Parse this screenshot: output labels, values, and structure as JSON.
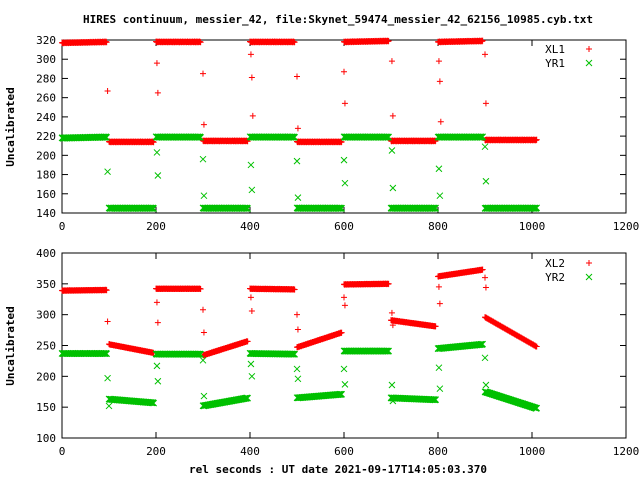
{
  "chart_data": [
    {
      "type": "scatter",
      "title": "HIRES continuum, messier_42, file:Skynet_59474_messier_42_62156_10985.cyb.txt",
      "xlabel": "",
      "ylabel": "Uncalibrated",
      "xlim": [
        0,
        1200
      ],
      "ylim": [
        140,
        320
      ],
      "xticks": [
        0,
        200,
        400,
        600,
        800,
        1000,
        1200
      ],
      "yticks": [
        140,
        160,
        180,
        200,
        220,
        240,
        260,
        280,
        300,
        320
      ],
      "legend": "top-right",
      "grid": false,
      "series": [
        {
          "name": "XL1",
          "marker": "plus",
          "color": "#ff0000",
          "segments": [
            {
              "x0": 0,
              "x1": 95,
              "y0": 317,
              "y1": 318
            },
            {
              "x0": 100,
              "x1": 195,
              "y0": 214,
              "y1": 214
            },
            {
              "x0": 200,
              "x1": 295,
              "y0": 318,
              "y1": 318
            },
            {
              "x0": 300,
              "x1": 395,
              "y0": 215,
              "y1": 215
            },
            {
              "x0": 400,
              "x1": 495,
              "y0": 318,
              "y1": 318
            },
            {
              "x0": 500,
              "x1": 595,
              "y0": 214,
              "y1": 214
            },
            {
              "x0": 600,
              "x1": 695,
              "y0": 318,
              "y1": 319
            },
            {
              "x0": 700,
              "x1": 795,
              "y0": 215,
              "y1": 215
            },
            {
              "x0": 800,
              "x1": 895,
              "y0": 318,
              "y1": 319
            },
            {
              "x0": 900,
              "x1": 1010,
              "y0": 216,
              "y1": 216
            }
          ],
          "transitions": [
            [
              97,
              267
            ],
            [
              202,
              296
            ],
            [
              204,
              265
            ],
            [
              300,
              285
            ],
            [
              302,
              232
            ],
            [
              402,
              305
            ],
            [
              404,
              281
            ],
            [
              406,
              241
            ],
            [
              500,
              282
            ],
            [
              502,
              228
            ],
            [
              600,
              287
            ],
            [
              602,
              254
            ],
            [
              702,
              298
            ],
            [
              704,
              241
            ],
            [
              802,
              298
            ],
            [
              804,
              277
            ],
            [
              806,
              235
            ],
            [
              900,
              305
            ],
            [
              902,
              254
            ]
          ]
        },
        {
          "name": "YR1",
          "marker": "cross",
          "color": "#00c000",
          "segments": [
            {
              "x0": 0,
              "x1": 95,
              "y0": 218,
              "y1": 219
            },
            {
              "x0": 100,
              "x1": 195,
              "y0": 145,
              "y1": 145
            },
            {
              "x0": 200,
              "x1": 295,
              "y0": 219,
              "y1": 219
            },
            {
              "x0": 300,
              "x1": 395,
              "y0": 145,
              "y1": 145
            },
            {
              "x0": 400,
              "x1": 495,
              "y0": 219,
              "y1": 219
            },
            {
              "x0": 500,
              "x1": 595,
              "y0": 145,
              "y1": 145
            },
            {
              "x0": 600,
              "x1": 695,
              "y0": 219,
              "y1": 219
            },
            {
              "x0": 700,
              "x1": 795,
              "y0": 145,
              "y1": 145
            },
            {
              "x0": 800,
              "x1": 895,
              "y0": 219,
              "y1": 219
            },
            {
              "x0": 900,
              "x1": 1010,
              "y0": 145,
              "y1": 145
            }
          ],
          "transitions": [
            [
              97,
              183
            ],
            [
              202,
              203
            ],
            [
              204,
              179
            ],
            [
              300,
              196
            ],
            [
              302,
              158
            ],
            [
              402,
              190
            ],
            [
              404,
              164
            ],
            [
              500,
              194
            ],
            [
              502,
              156
            ],
            [
              600,
              195
            ],
            [
              602,
              171
            ],
            [
              702,
              205
            ],
            [
              704,
              166
            ],
            [
              802,
              186
            ],
            [
              804,
              158
            ],
            [
              900,
              209
            ],
            [
              902,
              173
            ]
          ]
        }
      ]
    },
    {
      "type": "scatter",
      "title": "",
      "xlabel": "rel seconds : UT date 2021-09-17T14:05:03.370",
      "ylabel": "Uncalibrated",
      "xlim": [
        0,
        1200
      ],
      "ylim": [
        100,
        400
      ],
      "xticks": [
        0,
        200,
        400,
        600,
        800,
        1000,
        1200
      ],
      "yticks": [
        100,
        150,
        200,
        250,
        300,
        350,
        400
      ],
      "legend": "top-right",
      "grid": false,
      "series": [
        {
          "name": "XL2",
          "marker": "plus",
          "color": "#ff0000",
          "segments": [
            {
              "x0": 0,
              "x1": 95,
              "y0": 339,
              "y1": 340
            },
            {
              "x0": 100,
              "x1": 195,
              "y0": 252,
              "y1": 238
            },
            {
              "x0": 200,
              "x1": 295,
              "y0": 342,
              "y1": 342
            },
            {
              "x0": 300,
              "x1": 395,
              "y0": 234,
              "y1": 257
            },
            {
              "x0": 400,
              "x1": 495,
              "y0": 342,
              "y1": 341
            },
            {
              "x0": 500,
              "x1": 595,
              "y0": 247,
              "y1": 271
            },
            {
              "x0": 600,
              "x1": 695,
              "y0": 349,
              "y1": 350
            },
            {
              "x0": 700,
              "x1": 795,
              "y0": 291,
              "y1": 281
            },
            {
              "x0": 800,
              "x1": 895,
              "y0": 362,
              "y1": 373
            },
            {
              "x0": 900,
              "x1": 1010,
              "y0": 296,
              "y1": 248
            }
          ],
          "transitions": [
            [
              97,
              289
            ],
            [
              202,
              320
            ],
            [
              204,
              287
            ],
            [
              300,
              308
            ],
            [
              302,
              271
            ],
            [
              402,
              328
            ],
            [
              404,
              306
            ],
            [
              500,
              300
            ],
            [
              502,
              276
            ],
            [
              600,
              328
            ],
            [
              602,
              315
            ],
            [
              702,
              303
            ],
            [
              704,
              283
            ],
            [
              802,
              345
            ],
            [
              804,
              318
            ],
            [
              900,
              360
            ],
            [
              902,
              344
            ]
          ]
        },
        {
          "name": "YR2",
          "marker": "cross",
          "color": "#00c000",
          "segments": [
            {
              "x0": 0,
              "x1": 95,
              "y0": 237,
              "y1": 237
            },
            {
              "x0": 100,
              "x1": 195,
              "y0": 163,
              "y1": 157
            },
            {
              "x0": 200,
              "x1": 295,
              "y0": 236,
              "y1": 236
            },
            {
              "x0": 300,
              "x1": 395,
              "y0": 152,
              "y1": 165
            },
            {
              "x0": 400,
              "x1": 495,
              "y0": 237,
              "y1": 236
            },
            {
              "x0": 500,
              "x1": 595,
              "y0": 165,
              "y1": 171
            },
            {
              "x0": 600,
              "x1": 695,
              "y0": 241,
              "y1": 241
            },
            {
              "x0": 700,
              "x1": 795,
              "y0": 165,
              "y1": 162
            },
            {
              "x0": 800,
              "x1": 895,
              "y0": 245,
              "y1": 252
            },
            {
              "x0": 900,
              "x1": 1010,
              "y0": 175,
              "y1": 148
            }
          ],
          "transitions": [
            [
              97,
              197
            ],
            [
              100,
              152
            ],
            [
              202,
              217
            ],
            [
              204,
              192
            ],
            [
              300,
              226
            ],
            [
              302,
              168
            ],
            [
              402,
              220
            ],
            [
              404,
              200
            ],
            [
              500,
              212
            ],
            [
              502,
              196
            ],
            [
              600,
              212
            ],
            [
              602,
              187
            ],
            [
              702,
              186
            ],
            [
              704,
              160
            ],
            [
              802,
              214
            ],
            [
              804,
              180
            ],
            [
              900,
              230
            ],
            [
              902,
              186
            ]
          ]
        }
      ]
    }
  ]
}
